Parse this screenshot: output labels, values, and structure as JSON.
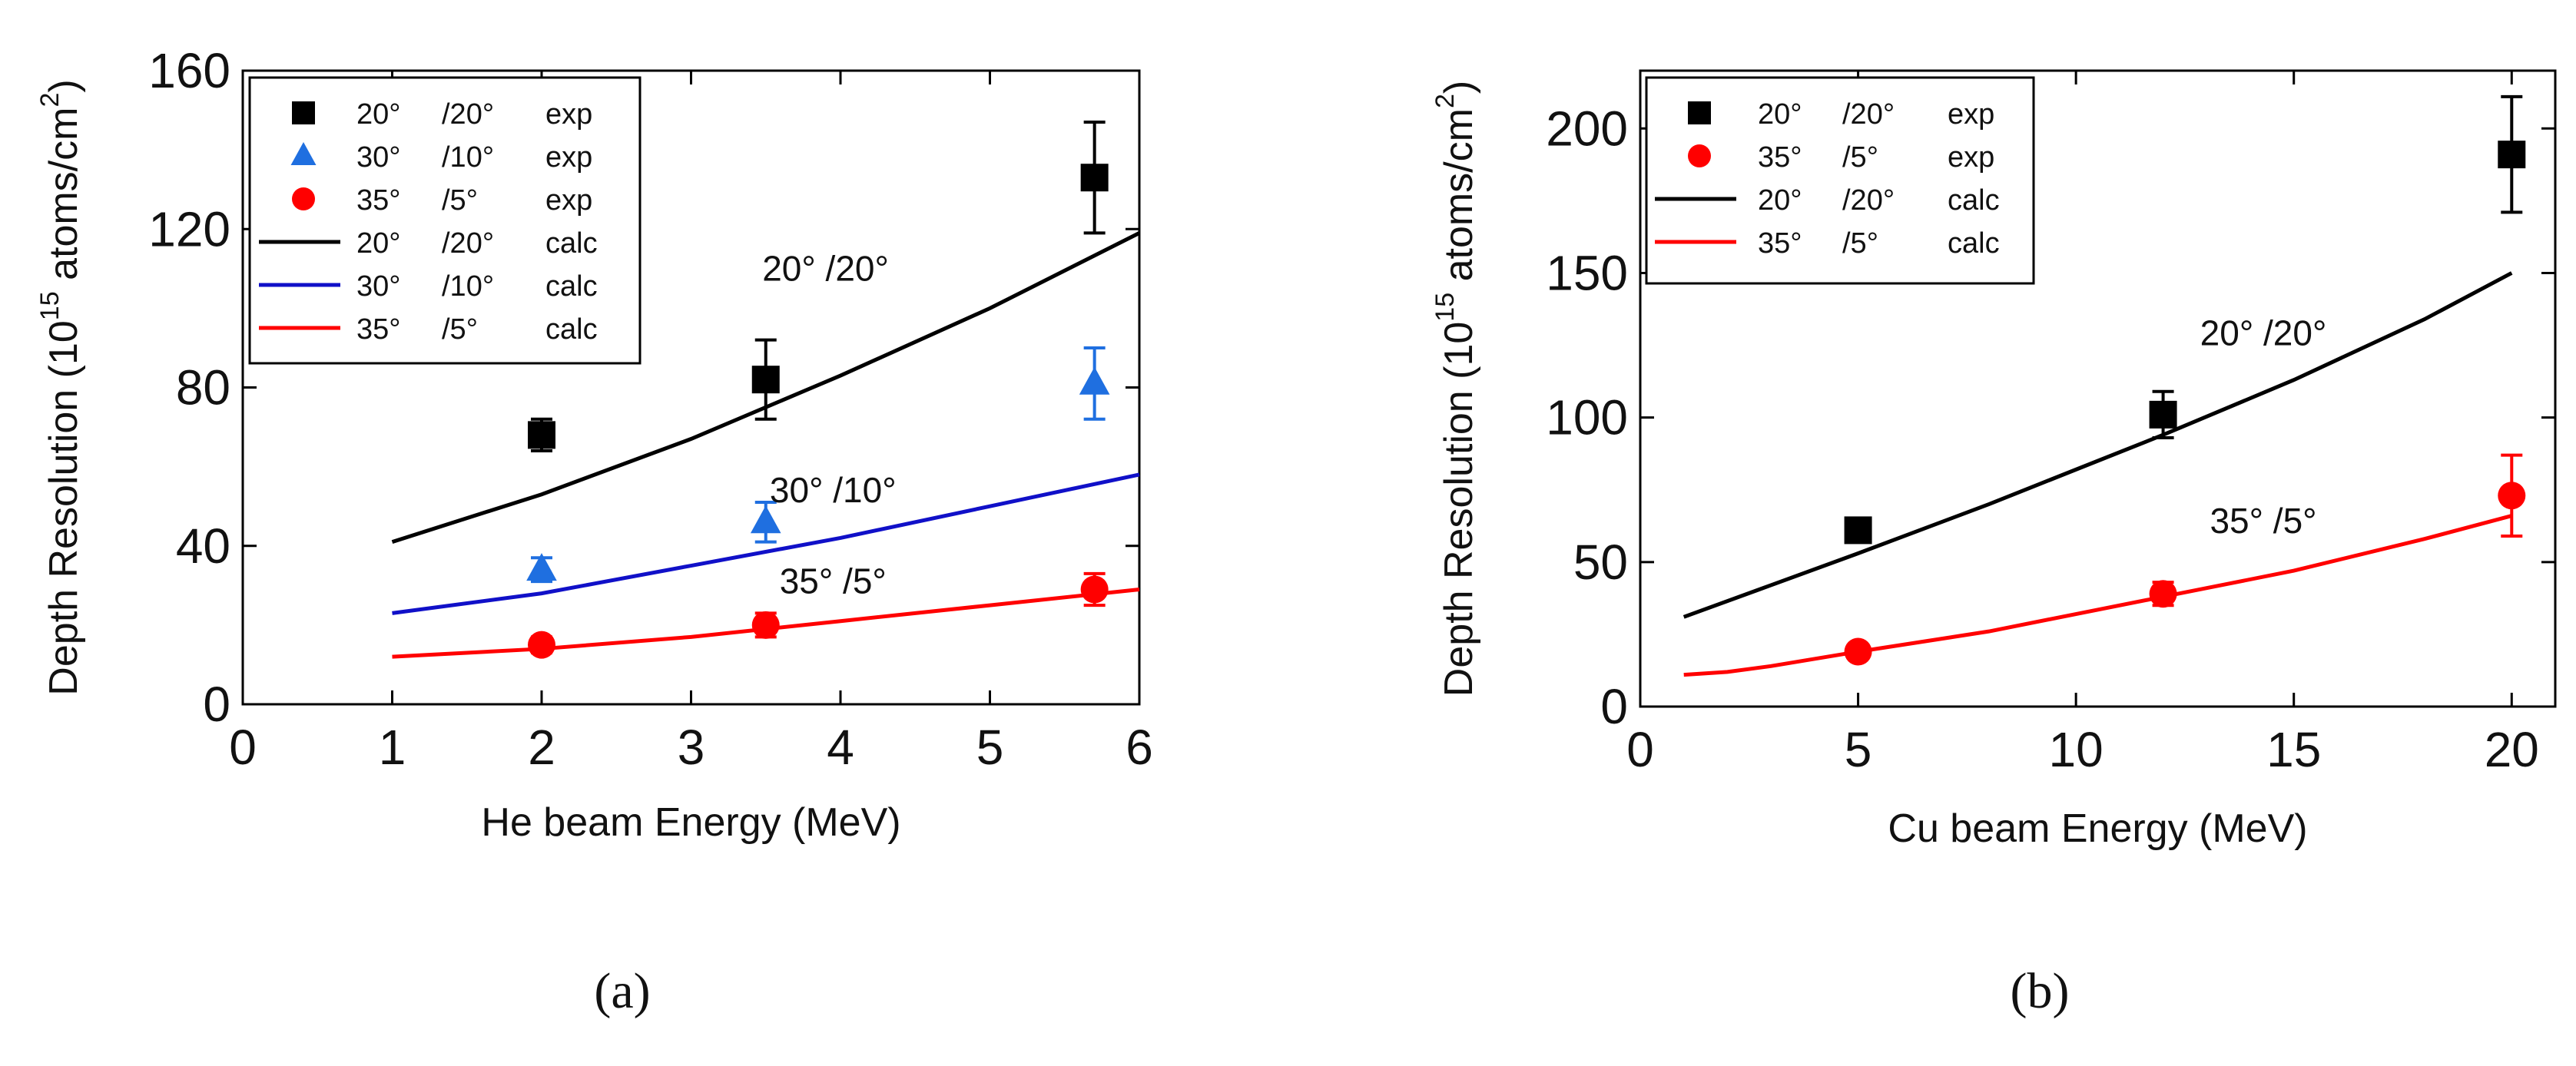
{
  "chart_data": [
    {
      "type": "scatter",
      "panel_label": "(a)",
      "xlabel": "He beam Energy (MeV)",
      "ylabel": {
        "prefix": "Depth Resolution (10",
        "exp": "15",
        "mid": " atoms/cm",
        "exp2": "2",
        "suffix": ")"
      },
      "xlim": [
        0,
        6
      ],
      "ylim": [
        0,
        160
      ],
      "xticks": [
        0,
        1,
        2,
        3,
        4,
        5,
        6
      ],
      "yticks": [
        0,
        40,
        80,
        120,
        160
      ],
      "grid": false,
      "legend_position": "top-left",
      "series": [
        {
          "name": "20° /20° exp",
          "label_parts": [
            "20°",
            "/20°",
            "exp"
          ],
          "kind": "points",
          "marker": "square",
          "color": "#000000",
          "x": [
            2.0,
            3.5,
            5.7
          ],
          "y": [
            68,
            82,
            133
          ],
          "err": [
            4,
            10,
            14
          ]
        },
        {
          "name": "30° /10° exp",
          "label_parts": [
            "30°",
            "/10°",
            "exp"
          ],
          "kind": "points",
          "marker": "triangle",
          "color": "#1f6fe0",
          "x": [
            2.0,
            3.5,
            5.7
          ],
          "y": [
            34,
            46,
            81
          ],
          "err": [
            3,
            5,
            9
          ]
        },
        {
          "name": "35° /5° exp",
          "label_parts": [
            "35°",
            "/5°",
            "exp"
          ],
          "kind": "points",
          "marker": "circle",
          "color": "#ff0000",
          "x": [
            2.0,
            3.5,
            5.7
          ],
          "y": [
            15,
            20,
            29
          ],
          "err": [
            2,
            3,
            4
          ]
        },
        {
          "name": "20° /20° calc",
          "label_parts": [
            "20°",
            "/20°",
            "calc"
          ],
          "kind": "line",
          "color": "#000000",
          "x": [
            1,
            2,
            3,
            4,
            5,
            6
          ],
          "y": [
            41,
            53,
            67,
            83,
            100,
            119
          ]
        },
        {
          "name": "30° /10° calc",
          "label_parts": [
            "30°",
            "/10°",
            "calc"
          ],
          "kind": "line",
          "color": "#1010c8",
          "x": [
            1,
            2,
            3,
            4,
            5,
            6
          ],
          "y": [
            23,
            28,
            35,
            42,
            50,
            58
          ]
        },
        {
          "name": "35° /5° calc",
          "label_parts": [
            "35°",
            "/5°",
            "calc"
          ],
          "kind": "line",
          "color": "#ff0000",
          "x": [
            1,
            2,
            3,
            4,
            5,
            6
          ],
          "y": [
            12,
            14,
            17,
            21,
            25,
            29
          ]
        }
      ],
      "annotations": [
        {
          "text": "20°  /20°",
          "x": 3.9,
          "y": 107
        },
        {
          "text": "30°  /10°",
          "x": 3.95,
          "y": 51
        },
        {
          "text": "35°  /5°",
          "x": 3.95,
          "y": 28
        }
      ]
    },
    {
      "type": "scatter",
      "panel_label": "(b)",
      "xlabel": "Cu beam Energy (MeV)",
      "ylabel": {
        "prefix": "Depth Resolution (10",
        "exp": "15",
        "mid": " atoms/cm",
        "exp2": "2",
        "suffix": ")"
      },
      "xlim": [
        0,
        21
      ],
      "ylim": [
        0,
        220
      ],
      "xticks": [
        0,
        5,
        10,
        15,
        20
      ],
      "yticks": [
        0,
        50,
        100,
        150,
        200
      ],
      "grid": false,
      "legend_position": "top-left",
      "series": [
        {
          "name": "20° /20° exp",
          "label_parts": [
            "20°",
            "/20°",
            "exp"
          ],
          "kind": "points",
          "marker": "square",
          "color": "#000000",
          "x": [
            5,
            12,
            20
          ],
          "y": [
            61,
            101,
            191
          ],
          "err": [
            3,
            8,
            20
          ]
        },
        {
          "name": "35° /5° exp",
          "label_parts": [
            "35°",
            "/5°",
            "exp"
          ],
          "kind": "points",
          "marker": "circle",
          "color": "#ff0000",
          "x": [
            5,
            12,
            20
          ],
          "y": [
            19,
            39,
            73
          ],
          "err": [
            2,
            4,
            14
          ]
        },
        {
          "name": "20° /20° calc",
          "label_parts": [
            "20°",
            "/20°",
            "calc"
          ],
          "kind": "line",
          "color": "#000000",
          "x": [
            1,
            3,
            5,
            8,
            10,
            12,
            15,
            18,
            20
          ],
          "y": [
            31,
            42,
            53,
            70,
            82,
            94,
            113,
            134,
            150
          ]
        },
        {
          "name": "35° /5° calc",
          "label_parts": [
            "35°",
            "/5°",
            "calc"
          ],
          "kind": "line",
          "color": "#ff0000",
          "x": [
            1,
            2,
            3,
            5,
            8,
            10,
            12,
            15,
            18,
            20
          ],
          "y": [
            11,
            12,
            14,
            19,
            26,
            32,
            38,
            47,
            58,
            66
          ]
        }
      ],
      "annotations": [
        {
          "text": "20°  /20°",
          "x": 14.3,
          "y": 125
        },
        {
          "text": "35°  /5°",
          "x": 14.3,
          "y": 60
        }
      ]
    }
  ]
}
